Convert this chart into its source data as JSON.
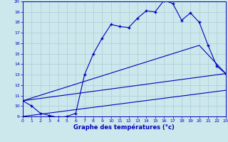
{
  "xlabel": "Graphe des températures (°c)",
  "bg_color": "#cce8ec",
  "grid_color": "#aacdd4",
  "line_color": "#0000bb",
  "xlim": [
    0,
    23
  ],
  "ylim": [
    9,
    20
  ],
  "xticks": [
    0,
    1,
    2,
    3,
    4,
    5,
    6,
    7,
    8,
    9,
    10,
    11,
    12,
    13,
    14,
    15,
    16,
    17,
    18,
    19,
    20,
    21,
    22,
    23
  ],
  "yticks": [
    9,
    10,
    11,
    12,
    13,
    14,
    15,
    16,
    17,
    18,
    19,
    20
  ],
  "series1_x": [
    0,
    1,
    2,
    3,
    4,
    5,
    6,
    7,
    8,
    9,
    10,
    11,
    12,
    13,
    14,
    15,
    16,
    17,
    18,
    19,
    20,
    21,
    22,
    23
  ],
  "series1_y": [
    10.5,
    10.0,
    9.3,
    9.1,
    8.9,
    9.0,
    9.3,
    13.0,
    15.0,
    16.5,
    17.8,
    17.6,
    17.5,
    18.4,
    19.1,
    19.0,
    20.1,
    19.8,
    18.2,
    18.9,
    18.0,
    15.8,
    13.8,
    13.1
  ],
  "series2_x": [
    0,
    23
  ],
  "series2_y": [
    10.5,
    13.1
  ],
  "series3_x": [
    0,
    20,
    23
  ],
  "series3_y": [
    10.5,
    15.8,
    13.1
  ],
  "series4_x": [
    0,
    23
  ],
  "series4_y": [
    9.0,
    11.5
  ]
}
